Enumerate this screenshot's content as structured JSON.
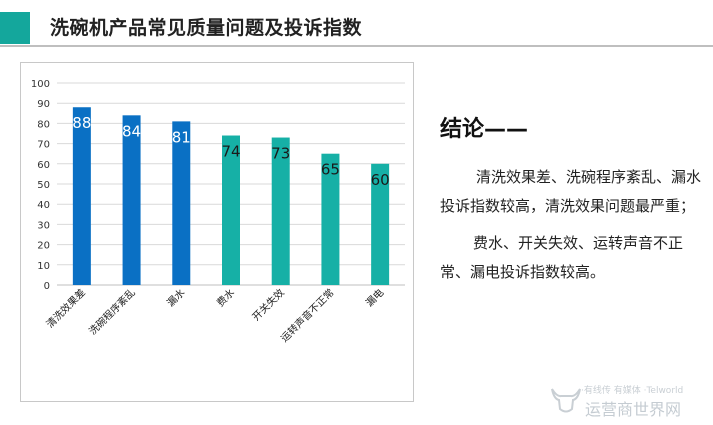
{
  "header": {
    "title": "洗碗机产品常见质量问题及投诉指数"
  },
  "chart_data": {
    "type": "bar",
    "categories": [
      "清洗效果差",
      "洗碗程序紊乱",
      "漏水",
      "费水",
      "开关失效",
      "运转声音不正常",
      "漏电"
    ],
    "values": [
      88,
      84,
      81,
      74,
      73,
      65,
      60
    ],
    "data_labels": [
      "88",
      "84",
      "81",
      "74",
      "73",
      "65",
      "60"
    ],
    "colors": [
      "#0a70c4",
      "#0a70c4",
      "#0a70c4",
      "#16b0a6",
      "#16b0a6",
      "#16b0a6",
      "#16b0a6"
    ],
    "label_colors": [
      "#ffffff",
      "#ffffff",
      "#ffffff",
      "#1a1a1a",
      "#1a1a1a",
      "#1a1a1a",
      "#1a1a1a"
    ],
    "ylim": [
      0,
      100
    ],
    "yticks": [
      0,
      10,
      20,
      30,
      40,
      50,
      60,
      70,
      80,
      90,
      100
    ],
    "ytick_labels": [
      "0",
      "10",
      "20",
      "30",
      "40",
      "50",
      "60",
      "70",
      "80",
      "90",
      "100"
    ],
    "grid": true,
    "legend": "none"
  },
  "conclusion": {
    "title": "结论——",
    "paragraph1": "清洗效果差、洗碗程序紊乱、漏水投诉指数较高，清洗效果问题最严重；",
    "paragraph2": "费水、开关失效、运转声音不正常、漏电投诉指数较高。"
  },
  "watermark": {
    "brand": "·有线传 有媒体 ·Telworld",
    "site": "运营商世界网"
  }
}
